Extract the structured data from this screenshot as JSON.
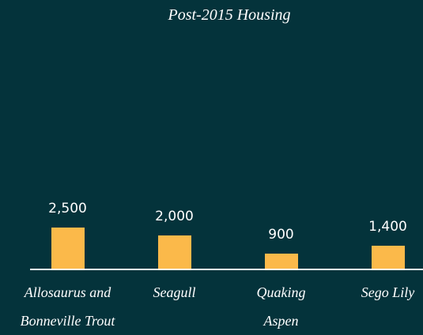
{
  "chart_data": {
    "type": "bar",
    "title": "Post-2015 Housing",
    "categories": [
      "Allosaurus and Bonneville Trout",
      "Seagull",
      "Quaking Aspen",
      "Sego Lily"
    ],
    "values": [
      2500,
      2000,
      900,
      1400
    ],
    "value_labels": [
      "2,500",
      "2,000",
      "900",
      "1,400"
    ],
    "color": "#fbb94a"
  }
}
